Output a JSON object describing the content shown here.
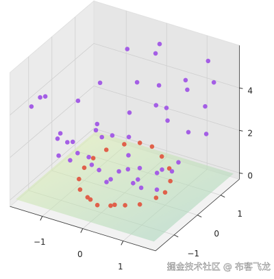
{
  "chart_data": {
    "type": "scatter3d",
    "xlim": [
      -1.8,
      1.8
    ],
    "ylim": [
      -1.8,
      1.8
    ],
    "zlim": [
      -0.3,
      6
    ],
    "xticks": [
      {
        "value": -1,
        "label": "−1"
      },
      0,
      1
    ],
    "yticks": [
      {
        "value": -1,
        "label": "−1"
      },
      0,
      1
    ],
    "zticks": [
      0,
      2,
      4
    ],
    "grid": true,
    "series": [
      {
        "color": "#e0604a",
        "x": [
          1.0,
          0.9,
          0.7,
          0.4,
          0.1,
          -0.2,
          -0.5,
          -0.8,
          -0.95,
          -1.0,
          -0.9,
          -0.7,
          -0.4,
          -0.1,
          0.2,
          0.5,
          0.75,
          0.95,
          0.3,
          -0.3
        ],
        "y": [
          0.0,
          0.4,
          0.7,
          0.9,
          1.0,
          1.0,
          0.85,
          0.6,
          0.3,
          0.0,
          -0.4,
          -0.7,
          -0.9,
          -1.0,
          -0.95,
          -0.85,
          -0.65,
          -0.3,
          -0.95,
          -0.95
        ],
        "z": [
          0.3,
          0.4,
          0.6,
          0.8,
          1.0,
          1.0,
          0.9,
          0.7,
          0.5,
          0.3,
          0.2,
          0.1,
          0.1,
          0.0,
          0.1,
          0.2,
          0.2,
          0.3,
          0.2,
          0.1
        ]
      },
      {
        "color": "#a45ee5",
        "x": [
          -1.5,
          -1.2,
          -0.9,
          -0.6,
          -0.3,
          0.0,
          0.3,
          0.6,
          0.9,
          1.2,
          1.5,
          -1.4,
          -1.0,
          -0.7,
          -0.2,
          0.2,
          0.5,
          0.8,
          1.1,
          1.4,
          -1.3,
          -0.8,
          -0.4,
          0.1,
          0.4,
          0.7,
          1.0,
          1.3,
          -1.1,
          -0.5,
          0.0,
          0.6,
          1.2,
          -1.5,
          -0.9,
          -0.1,
          0.3,
          0.9,
          1.5,
          -1.2,
          -0.6,
          0.2,
          0.8,
          1.4,
          -1.0,
          -0.3,
          0.5,
          1.1,
          -1.4,
          0.0
        ],
        "y": [
          -1.4,
          -0.8,
          -1.2,
          -0.5,
          -1.5,
          -1.1,
          -1.3,
          -0.9,
          -1.4,
          -0.7,
          -1.0,
          0.2,
          0.5,
          -0.2,
          0.1,
          0.3,
          -0.3,
          0.0,
          0.4,
          -0.4,
          1.2,
          1.5,
          0.9,
          1.3,
          1.1,
          1.4,
          1.0,
          1.2,
          -1.5,
          1.4,
          -0.6,
          0.8,
          1.5,
          0.6,
          -0.9,
          1.5,
          -1.5,
          -1.2,
          0.9,
          0.9,
          -1.3,
          1.0,
          1.3,
          1.4,
          -1.1,
          0.7,
          -1.4,
          -1.2,
          -1.2,
          1.5
        ],
        "z": [
          4.2,
          2.3,
          3.1,
          1.5,
          2.8,
          1.8,
          1.6,
          2.0,
          3.3,
          1.2,
          2.6,
          1.1,
          1.6,
          0.8,
          0.5,
          0.7,
          0.9,
          1.1,
          1.4,
          1.9,
          3.0,
          4.6,
          2.4,
          3.6,
          2.9,
          4.1,
          2.2,
          3.4,
          5.0,
          3.3,
          0.9,
          2.7,
          5.2,
          2.6,
          2.4,
          4.8,
          3.9,
          1.8,
          2.5,
          1.4,
          2.1,
          3.0,
          3.8,
          4.4,
          1.9,
          1.5,
          4.0,
          1.7,
          4.5,
          5.3
        ]
      }
    ],
    "watermark": "掘金技术社区 @ 布客飞龙"
  }
}
